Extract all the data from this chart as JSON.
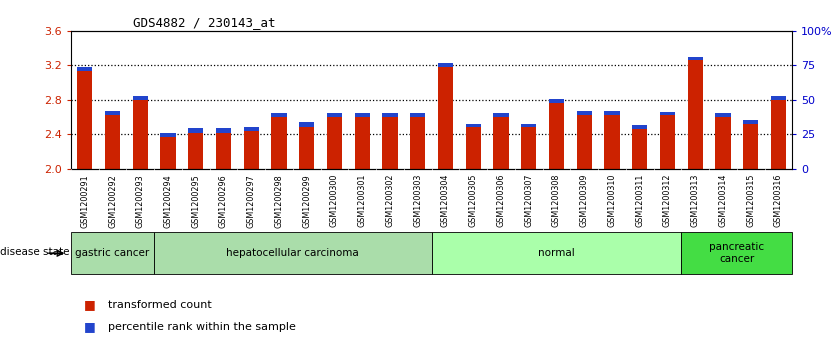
{
  "title": "GDS4882 / 230143_at",
  "samples": [
    "GSM1200291",
    "GSM1200292",
    "GSM1200293",
    "GSM1200294",
    "GSM1200295",
    "GSM1200296",
    "GSM1200297",
    "GSM1200298",
    "GSM1200299",
    "GSM1200300",
    "GSM1200301",
    "GSM1200302",
    "GSM1200303",
    "GSM1200304",
    "GSM1200305",
    "GSM1200306",
    "GSM1200307",
    "GSM1200308",
    "GSM1200309",
    "GSM1200310",
    "GSM1200311",
    "GSM1200312",
    "GSM1200313",
    "GSM1200314",
    "GSM1200315",
    "GSM1200316"
  ],
  "red_values": [
    3.13,
    2.62,
    2.8,
    2.37,
    2.42,
    2.42,
    2.44,
    2.6,
    2.49,
    2.6,
    2.6,
    2.6,
    2.6,
    3.18,
    2.48,
    2.6,
    2.48,
    2.76,
    2.62,
    2.62,
    2.46,
    2.62,
    3.26,
    2.6,
    2.52,
    2.8
  ],
  "blue_heights": [
    0.055,
    0.045,
    0.048,
    0.045,
    0.048,
    0.048,
    0.048,
    0.048,
    0.048,
    0.052,
    0.052,
    0.052,
    0.048,
    0.048,
    0.045,
    0.042,
    0.045,
    0.045,
    0.045,
    0.045,
    0.045,
    0.042,
    0.042,
    0.042,
    0.048,
    0.04
  ],
  "disease_groups": [
    {
      "label": "gastric cancer",
      "start": 0,
      "end": 3,
      "color": "#aaddaa"
    },
    {
      "label": "hepatocellular carcinoma",
      "start": 3,
      "end": 13,
      "color": "#bbeeaa"
    },
    {
      "label": "normal",
      "start": 13,
      "end": 22,
      "color": "#aaffaa"
    },
    {
      "label": "pancreatic\ncancer",
      "start": 22,
      "end": 26,
      "color": "#44cc44"
    }
  ],
  "ylim": [
    2.0,
    3.6
  ],
  "yticks": [
    2.0,
    2.4,
    2.8,
    3.2,
    3.6
  ],
  "right_ytick_labels": [
    "0",
    "25",
    "50",
    "75",
    "100%"
  ],
  "right_ytick_vals": [
    0,
    25,
    50,
    75,
    100
  ],
  "bar_color": "#cc2200",
  "blue_color": "#2244cc",
  "xlabel_color": "#cc2200",
  "right_axis_color": "#0000cc",
  "ticklabel_bg": "#d8d8d8"
}
